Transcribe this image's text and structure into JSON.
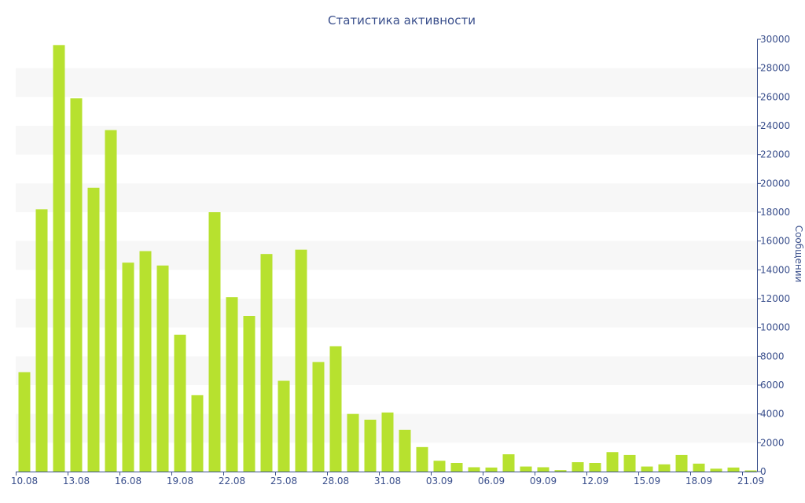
{
  "chart_data": {
    "type": "bar",
    "title": "Статистика активности",
    "xlabel": "",
    "ylabel": "Сообщении",
    "ylim": [
      0,
      30000
    ],
    "y_ticks": [
      0,
      2000,
      4000,
      6000,
      8000,
      10000,
      12000,
      14000,
      16000,
      18000,
      20000,
      22000,
      24000,
      26000,
      28000,
      30000
    ],
    "y_axis_side": "right",
    "grid": "alternating horizontal bands",
    "bar_color": "#b7e12f",
    "band_color": "#f7f7f7",
    "text_color": "#3a4f8c",
    "categories": [
      "10.08",
      "11.08",
      "12.08",
      "13.08",
      "14.08",
      "15.08",
      "16.08",
      "17.08",
      "18.08",
      "19.08",
      "20.08",
      "21.08",
      "22.08",
      "23.08",
      "24.08",
      "25.08",
      "26.08",
      "27.08",
      "28.08",
      "29.08",
      "30.08",
      "31.08",
      "01.09",
      "02.09",
      "03.09",
      "04.09",
      "05.09",
      "06.09",
      "07.09",
      "08.09",
      "09.09",
      "10.09",
      "11.09",
      "12.09",
      "13.09",
      "14.09",
      "15.09",
      "16.09",
      "17.09",
      "18.09",
      "19.09",
      "20.09",
      "21.09"
    ],
    "x_tick_labels": [
      "10.08",
      "13.08",
      "16.08",
      "19.08",
      "22.08",
      "25.08",
      "28.08",
      "31.08",
      "03.09",
      "06.09",
      "09.09",
      "12.09",
      "15.09",
      "18.09",
      "21.09"
    ],
    "values": [
      6900,
      18200,
      29600,
      25900,
      19700,
      23700,
      14500,
      15300,
      14300,
      9500,
      5300,
      18000,
      12100,
      10800,
      15100,
      6300,
      15400,
      7600,
      8700,
      4000,
      3600,
      4100,
      2900,
      1700,
      750,
      600,
      300,
      280,
      1200,
      350,
      300,
      100,
      650,
      600,
      1350,
      1150,
      350,
      500,
      1150,
      550,
      200,
      280,
      80
    ]
  }
}
